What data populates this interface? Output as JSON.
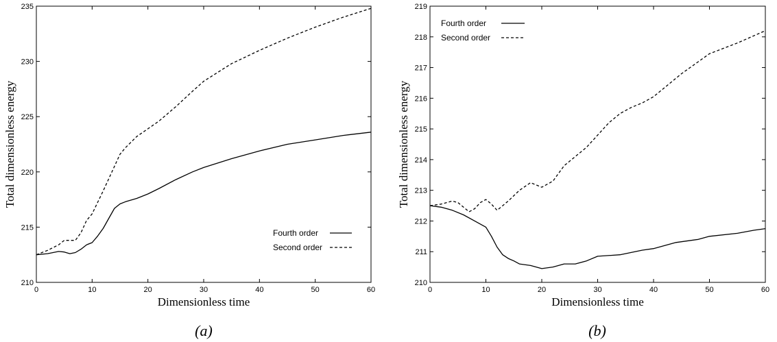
{
  "chart_data": [
    {
      "type": "line",
      "caption": "(a)",
      "xlabel": "Dimensionless time",
      "ylabel": "Total dimensionless energy",
      "xlim": [
        0,
        60
      ],
      "ylim": [
        210,
        235
      ],
      "xticks": [
        0,
        10,
        20,
        30,
        40,
        50,
        60
      ],
      "yticks": [
        210,
        215,
        220,
        225,
        230,
        235
      ],
      "legend_position": "bottom-right",
      "grid": false,
      "series": [
        {
          "name": "Fourth order",
          "style": "solid",
          "x": [
            0,
            2,
            4,
            5,
            6,
            7,
            8,
            9,
            10,
            11,
            12,
            13,
            14,
            15,
            16,
            18,
            20,
            22,
            25,
            28,
            30,
            35,
            40,
            45,
            50,
            55,
            60
          ],
          "y": [
            212.5,
            212.6,
            212.8,
            212.75,
            212.6,
            212.7,
            213.0,
            213.4,
            213.6,
            214.2,
            214.9,
            215.8,
            216.7,
            217.1,
            217.3,
            217.6,
            218.0,
            218.5,
            219.3,
            220.0,
            220.4,
            221.2,
            221.9,
            222.5,
            222.9,
            223.3,
            223.6
          ]
        },
        {
          "name": "Second order",
          "style": "dashed",
          "x": [
            0,
            2,
            4,
            5,
            6,
            7,
            8,
            9,
            10,
            12,
            14,
            15,
            16,
            18,
            20,
            22,
            25,
            28,
            30,
            35,
            40,
            45,
            50,
            55,
            60
          ],
          "y": [
            212.5,
            212.9,
            213.4,
            213.8,
            213.8,
            213.8,
            214.5,
            215.6,
            216.2,
            218.3,
            220.5,
            221.6,
            222.2,
            223.2,
            223.9,
            224.6,
            225.9,
            227.3,
            228.2,
            229.8,
            231.0,
            232.1,
            233.1,
            234.0,
            234.8
          ]
        }
      ]
    },
    {
      "type": "line",
      "caption": "(b)",
      "xlabel": "Dimensionless time",
      "ylabel": "Total dimensionless energy",
      "xlim": [
        0,
        60
      ],
      "ylim": [
        210,
        219
      ],
      "xticks": [
        0,
        10,
        20,
        30,
        40,
        50,
        60
      ],
      "yticks": [
        210,
        211,
        212,
        213,
        214,
        215,
        216,
        217,
        218,
        219
      ],
      "legend_position": "top-left",
      "grid": false,
      "series": [
        {
          "name": "Fourth order",
          "style": "solid",
          "x": [
            0,
            2,
            4,
            6,
            8,
            10,
            11,
            12,
            13,
            14,
            15,
            16,
            18,
            20,
            22,
            24,
            26,
            28,
            30,
            34,
            38,
            40,
            42,
            44,
            48,
            50,
            55,
            58,
            60
          ],
          "y": [
            212.5,
            212.45,
            212.35,
            212.2,
            212.0,
            211.8,
            211.5,
            211.15,
            210.9,
            210.78,
            210.7,
            210.6,
            210.55,
            210.45,
            210.5,
            210.6,
            210.6,
            210.7,
            210.85,
            210.9,
            211.05,
            211.1,
            211.2,
            211.3,
            211.4,
            211.5,
            211.6,
            211.7,
            211.75
          ]
        },
        {
          "name": "Second order",
          "style": "dashed",
          "x": [
            0,
            2,
            4,
            5,
            6,
            7,
            8,
            9,
            10,
            11,
            12,
            13,
            14,
            16,
            18,
            20,
            22,
            24,
            26,
            28,
            30,
            32,
            34,
            36,
            38,
            40,
            45,
            50,
            55,
            60
          ],
          "y": [
            212.5,
            212.55,
            212.65,
            212.6,
            212.45,
            212.3,
            212.4,
            212.6,
            212.7,
            212.55,
            212.35,
            212.5,
            212.65,
            213.0,
            213.25,
            213.1,
            213.3,
            213.8,
            214.1,
            214.4,
            214.8,
            215.2,
            215.5,
            215.7,
            215.85,
            216.05,
            216.8,
            217.45,
            217.8,
            218.2
          ]
        }
      ]
    }
  ]
}
